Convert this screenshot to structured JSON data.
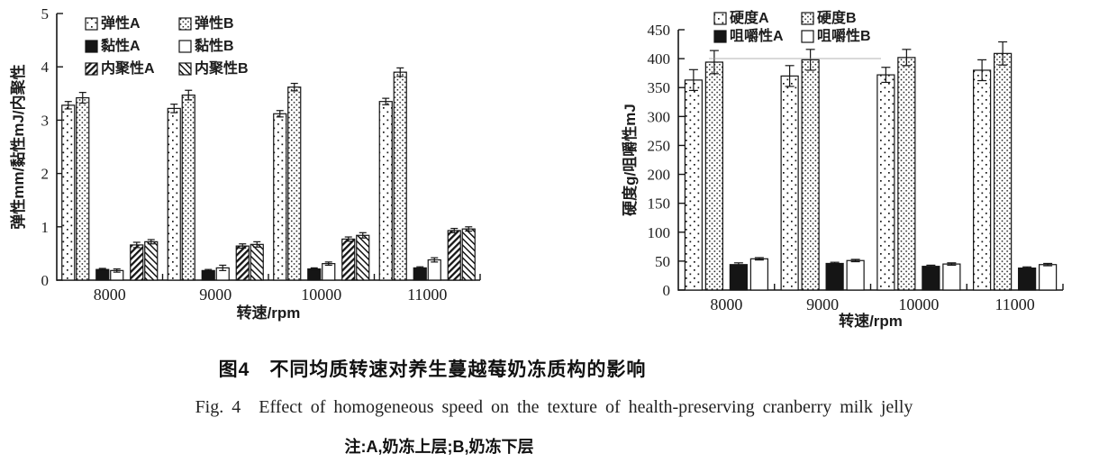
{
  "figure": {
    "caption_zh": "图4　不同均质转速对养生蔓越莓奶冻质构的影响",
    "caption_en": "Fig. 4 Effect of homogeneous speed on the texture of health-preserving cranberry milk jelly",
    "note": "注:A,奶冻上层;B,奶冻下层"
  },
  "chart_data": [
    {
      "type": "bar",
      "name": "elasticity-viscosity-cohesiveness-chart",
      "title": "",
      "xlabel": "转速/rpm",
      "ylabel": "弹性mm/黏性mJ/内聚性",
      "ylim": [
        0,
        5
      ],
      "ytick_step": 1,
      "grid": false,
      "legend_position": "top-left-inside",
      "categories": [
        "8000",
        "9000",
        "10000",
        "11000"
      ],
      "series": [
        {
          "name": "弹性A",
          "pattern": "dots-sparse",
          "values": [
            3.28,
            3.22,
            3.12,
            3.35
          ],
          "errors": [
            0.07,
            0.08,
            0.06,
            0.06
          ]
        },
        {
          "name": "弹性B",
          "pattern": "dots-dense",
          "values": [
            3.42,
            3.47,
            3.62,
            3.9
          ],
          "errors": [
            0.1,
            0.09,
            0.07,
            0.08
          ]
        },
        {
          "name": "黏性A",
          "pattern": "solid-black",
          "values": [
            0.2,
            0.18,
            0.21,
            0.23
          ],
          "errors": [
            0.02,
            0.02,
            0.02,
            0.02
          ]
        },
        {
          "name": "黏性B",
          "pattern": "white",
          "values": [
            0.18,
            0.23,
            0.31,
            0.38
          ],
          "errors": [
            0.03,
            0.05,
            0.03,
            0.04
          ]
        },
        {
          "name": "内聚性A",
          "pattern": "hatch-back",
          "values": [
            0.66,
            0.64,
            0.77,
            0.93
          ],
          "errors": [
            0.05,
            0.04,
            0.04,
            0.04
          ]
        },
        {
          "name": "内聚性B",
          "pattern": "hatch-fwd",
          "values": [
            0.72,
            0.67,
            0.84,
            0.96
          ],
          "errors": [
            0.04,
            0.05,
            0.05,
            0.04
          ]
        }
      ]
    },
    {
      "type": "bar",
      "name": "hardness-chewiness-chart",
      "title": "",
      "xlabel": "转速/rpm",
      "ylabel": "硬度g/咀嚼性mJ",
      "ylim": [
        0,
        450
      ],
      "ytick_step": 50,
      "grid": false,
      "legend_position": "top-inside",
      "categories": [
        "8000",
        "9000",
        "10000",
        "11000"
      ],
      "series": [
        {
          "name": "硬度A",
          "pattern": "dots-sparse",
          "values": [
            363,
            370,
            372,
            380
          ],
          "errors": [
            18,
            18,
            13,
            18
          ]
        },
        {
          "name": "硬度B",
          "pattern": "dots-dense",
          "values": [
            394,
            398,
            402,
            409
          ],
          "errors": [
            20,
            18,
            14,
            20
          ]
        },
        {
          "name": "咀嚼性A",
          "pattern": "solid-black",
          "values": [
            44,
            46,
            41,
            38
          ],
          "errors": [
            3,
            2,
            2,
            2
          ]
        },
        {
          "name": "咀嚼性B",
          "pattern": "white",
          "values": [
            54,
            51,
            45,
            44
          ],
          "errors": [
            2,
            2,
            2,
            2
          ]
        }
      ]
    }
  ]
}
